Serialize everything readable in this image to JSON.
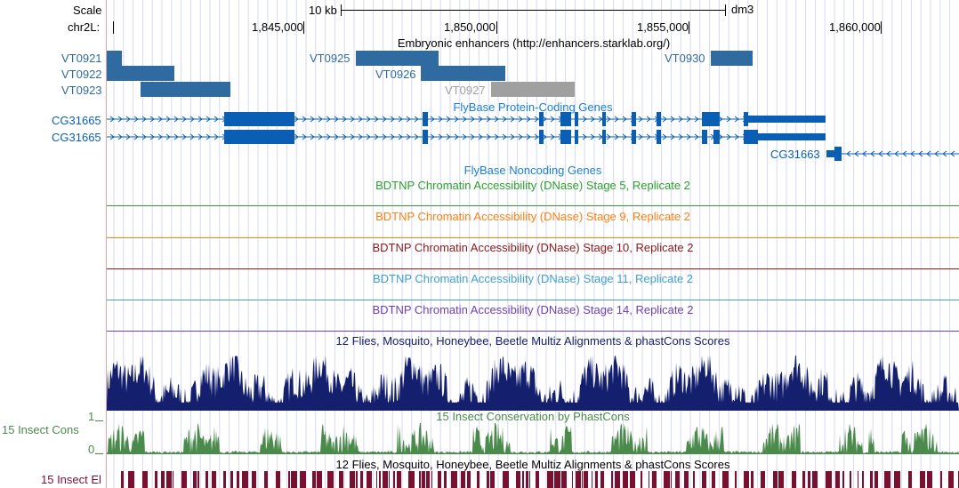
{
  "header": {
    "scale_label": "Scale",
    "chrom_label": "chr2L:",
    "scale_bar_text": "10 kb",
    "assembly": "dm3",
    "ticks": [
      "1,845,000",
      "1,850,000",
      "1,855,000",
      "1,860,000"
    ]
  },
  "tracks": {
    "enhancers": {
      "title": "Embryonic enhancers (http://enhancers.starklab.org/)",
      "items": [
        "VT0921",
        "VT0922",
        "VT0923",
        "VT0925",
        "VT0926",
        "VT0927",
        "VT0930"
      ]
    },
    "coding": {
      "title": "FlyBase Protein-Coding Genes",
      "genes": [
        "CG31665",
        "CG31665",
        "CG31663"
      ]
    },
    "noncoding": {
      "title": "FlyBase Noncoding Genes"
    },
    "dnase": [
      {
        "title": "BDTNP Chromatin Accessibility (DNase) Stage 5, Replicate 2",
        "color": "#2ca02c"
      },
      {
        "title": "BDTNP Chromatin Accessibility (DNase) Stage 9, Replicate 2",
        "color": "#ff7f0e"
      },
      {
        "title": "BDTNP Chromatin Accessibility (DNase) Stage 10, Replicate 2",
        "color": "#8b1a1a"
      },
      {
        "title": "BDTNP Chromatin Accessibility (DNase) Stage 11, Replicate 2",
        "color": "#3fa0d0"
      },
      {
        "title": "BDTNP Chromatin Accessibility (DNase) Stage 14, Replicate 2",
        "color": "#7040b0"
      }
    ],
    "multiz": {
      "title": "12 Flies, Mosquito, Honeybee, Beetle Multiz Alignments & phastCons Scores"
    },
    "phastcons": {
      "title": "15 Insect Conservation by PhastCons",
      "side_label": "15 Insect Cons",
      "axis_max": "1",
      "axis_min": "0"
    },
    "elements": {
      "title": "12 Flies, Mosquito, Honeybee, Beetle Multiz Alignments & phastCons Scores",
      "side_label": "15 Insect El"
    }
  },
  "colors": {
    "enhancer": "#2f6aa0",
    "enhancer_gray": "#a0a0a0",
    "gene": "#0a5fb4",
    "multiz": "#14206e",
    "phastcons": "#4a8a4a",
    "elements": "#7a1030",
    "grid_line": "#d7d7f2",
    "left_border": "#f0a0a0"
  }
}
